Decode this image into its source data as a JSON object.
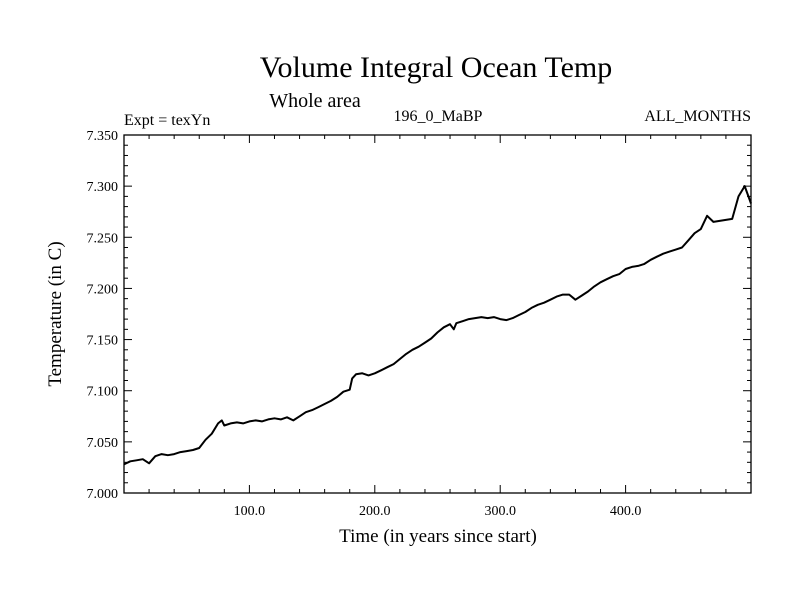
{
  "chart_data": {
    "type": "line",
    "title": "Volume Integral Ocean Temp",
    "subtitle": "Whole area",
    "left_note": "Expt = texYn",
    "center_note": "196_0_MaBP",
    "right_note": "ALL_MONTHS",
    "xlabel": "Time (in years since start)",
    "ylabel": "Temperature (in C)",
    "xlim": [
      0,
      500
    ],
    "ylim": [
      7.0,
      7.35
    ],
    "x_ticks": [
      {
        "value": 100,
        "label": "100.0"
      },
      {
        "value": 200,
        "label": "200.0"
      },
      {
        "value": 300,
        "label": "300.0"
      },
      {
        "value": 400,
        "label": "400.0"
      }
    ],
    "y_ticks": [
      {
        "value": 7.0,
        "label": "7.000"
      },
      {
        "value": 7.05,
        "label": "7.050"
      },
      {
        "value": 7.1,
        "label": "7.100"
      },
      {
        "value": 7.15,
        "label": "7.150"
      },
      {
        "value": 7.2,
        "label": "7.200"
      },
      {
        "value": 7.25,
        "label": "7.250"
      },
      {
        "value": 7.3,
        "label": "7.300"
      },
      {
        "value": 7.35,
        "label": "7.350"
      }
    ],
    "grid": false,
    "line_color": "#000000",
    "series": [
      {
        "x": [
          0,
          5,
          10,
          15,
          20,
          25,
          30,
          35,
          40,
          45,
          50,
          55,
          60,
          65,
          70,
          75,
          78,
          80,
          85,
          90,
          95,
          100,
          105,
          110,
          115,
          120,
          125,
          130,
          135,
          140,
          145,
          150,
          155,
          160,
          165,
          170,
          175,
          180,
          182,
          185,
          190,
          195,
          200,
          205,
          210,
          215,
          220,
          225,
          230,
          235,
          240,
          245,
          250,
          255,
          260,
          263,
          265,
          270,
          275,
          280,
          285,
          290,
          295,
          300,
          305,
          310,
          315,
          320,
          325,
          330,
          335,
          340,
          345,
          350,
          355,
          360,
          365,
          370,
          375,
          380,
          385,
          390,
          395,
          400,
          405,
          410,
          415,
          420,
          425,
          430,
          435,
          440,
          445,
          450,
          455,
          460,
          465,
          470,
          475,
          480,
          485,
          490,
          495,
          500
        ],
        "y": [
          7.028,
          7.031,
          7.032,
          7.033,
          7.029,
          7.036,
          7.038,
          7.037,
          7.038,
          7.04,
          7.041,
          7.042,
          7.044,
          7.052,
          7.058,
          7.068,
          7.071,
          7.066,
          7.068,
          7.069,
          7.068,
          7.07,
          7.071,
          7.07,
          7.072,
          7.073,
          7.072,
          7.074,
          7.071,
          7.075,
          7.079,
          7.081,
          7.084,
          7.087,
          7.09,
          7.094,
          7.099,
          7.101,
          7.112,
          7.116,
          7.117,
          7.115,
          7.117,
          7.12,
          7.123,
          7.126,
          7.131,
          7.136,
          7.14,
          7.143,
          7.147,
          7.151,
          7.157,
          7.162,
          7.165,
          7.16,
          7.166,
          7.168,
          7.17,
          7.171,
          7.172,
          7.171,
          7.172,
          7.17,
          7.169,
          7.171,
          7.174,
          7.177,
          7.181,
          7.184,
          7.186,
          7.189,
          7.192,
          7.194,
          7.194,
          7.189,
          7.193,
          7.197,
          7.202,
          7.206,
          7.209,
          7.212,
          7.214,
          7.219,
          7.221,
          7.222,
          7.224,
          7.228,
          7.231,
          7.234,
          7.236,
          7.238,
          7.24,
          7.247,
          7.254,
          7.258,
          7.271,
          7.265,
          7.266,
          7.267,
          7.268,
          7.29,
          7.3,
          7.283
        ]
      }
    ]
  }
}
